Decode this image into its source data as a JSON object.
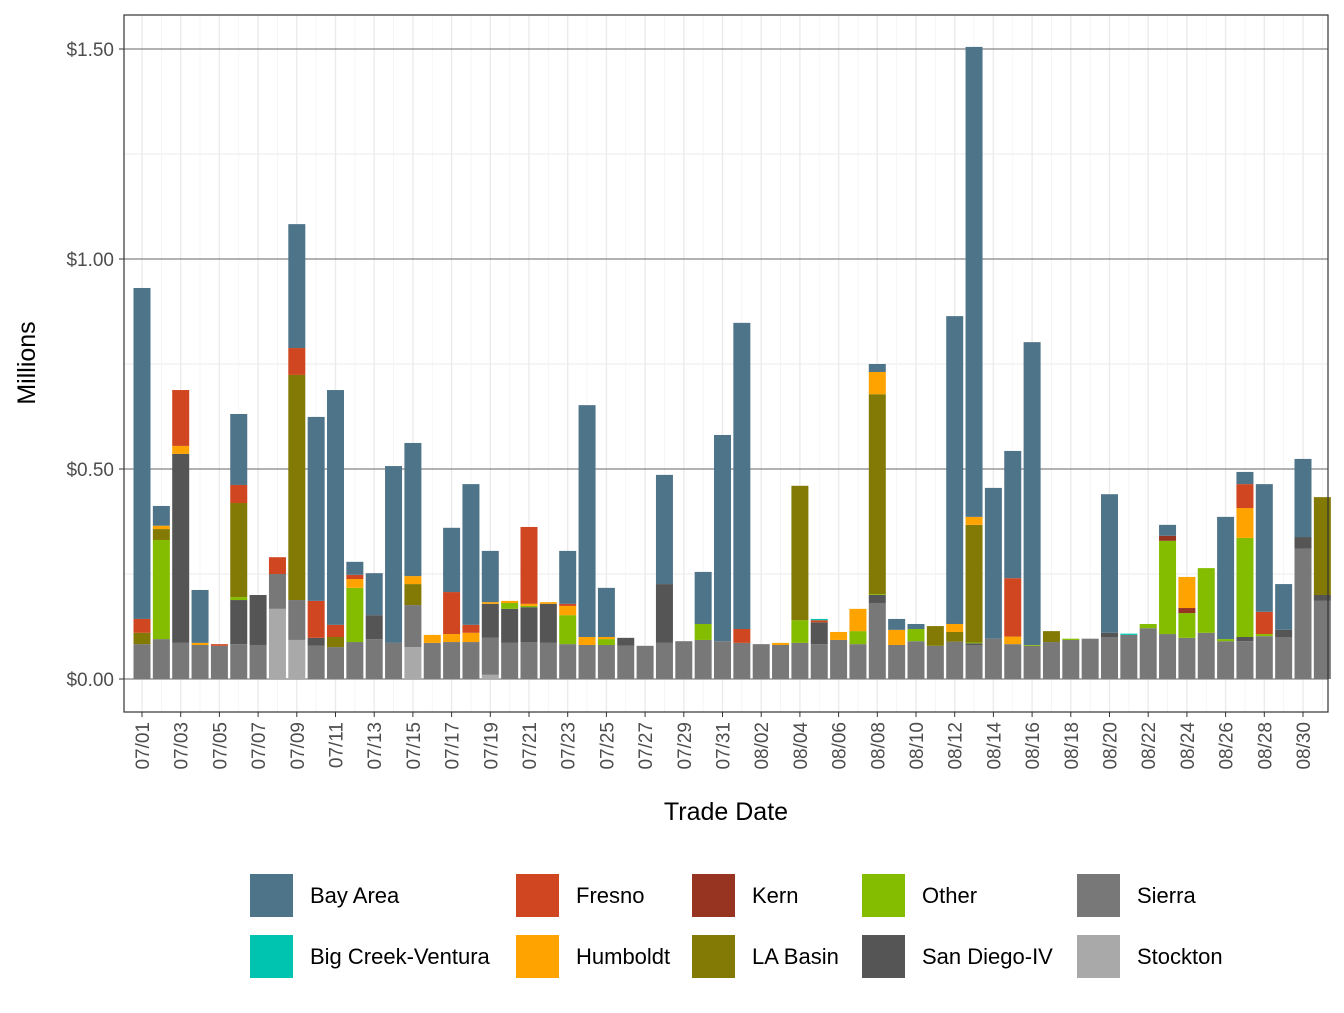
{
  "chart_data": {
    "type": "bar",
    "stacked": true,
    "title": "",
    "xlabel": "Trade Date",
    "ylabel": "Millions",
    "ylim": [
      -0.08,
      1.58
    ],
    "yticks": [
      0,
      0.5,
      1.0,
      1.5
    ],
    "ytick_labels": [
      "$0.00",
      "$0.50",
      "$1.00",
      "$1.50"
    ],
    "grid": true,
    "legend_position": "bottom",
    "categories": [
      "07/01",
      "07/02",
      "07/03",
      "07/04",
      "07/05",
      "07/06",
      "07/07",
      "07/08",
      "07/09",
      "07/10",
      "07/11",
      "07/12",
      "07/13",
      "07/14",
      "07/15",
      "07/16",
      "07/17",
      "07/18",
      "07/19",
      "07/20",
      "07/21",
      "07/22",
      "07/23",
      "07/24",
      "07/25",
      "07/26",
      "07/27",
      "07/28",
      "07/29",
      "07/30",
      "07/31",
      "08/01",
      "08/02",
      "08/03",
      "08/04",
      "08/05",
      "08/06",
      "08/07",
      "08/08",
      "08/09",
      "08/10",
      "08/11",
      "08/12",
      "08/13",
      "08/14",
      "08/15",
      "08/16",
      "08/17",
      "08/18",
      "08/19",
      "08/20",
      "08/21",
      "08/22",
      "08/23",
      "08/24",
      "08/25",
      "08/26",
      "08/27",
      "08/28",
      "08/29",
      "08/30",
      "08/31"
    ],
    "xtick_labels": [
      "07/01",
      "07/03",
      "07/05",
      "07/07",
      "07/09",
      "07/11",
      "07/13",
      "07/15",
      "07/17",
      "07/19",
      "07/21",
      "07/23",
      "07/25",
      "07/27",
      "07/29",
      "07/31",
      "08/02",
      "08/04",
      "08/06",
      "08/08",
      "08/10",
      "08/12",
      "08/14",
      "08/16",
      "08/18",
      "08/20",
      "08/22",
      "08/24",
      "08/26",
      "08/28",
      "08/30"
    ],
    "stack_order_bottom_to_top": [
      "Stockton",
      "Sierra",
      "San Diego-IV",
      "Other",
      "LA Basin",
      "Kern",
      "Humboldt",
      "Fresno",
      "Big Creek-Ventura",
      "Bay Area"
    ],
    "legend_order": [
      "Bay Area",
      "Fresno",
      "Kern",
      "Other",
      "Sierra",
      "Big Creek-Ventura",
      "Humboldt",
      "LA Basin",
      "San Diego-IV",
      "Stockton"
    ],
    "series": [
      {
        "name": "Bay Area",
        "color": "#4e7489",
        "values": [
          0.788,
          0.047,
          0,
          0.126,
          0,
          0.169,
          0,
          0,
          0.295,
          0.438,
          0.559,
          0.031,
          0.1,
          0.421,
          0.317,
          0,
          0.153,
          0.335,
          0.122,
          0,
          0,
          0,
          0.126,
          0.552,
          0.117,
          0,
          0,
          0.26,
          0,
          0.124,
          0.491,
          0.729,
          0,
          0,
          0,
          0,
          0,
          0,
          0.019,
          0.026,
          0.012,
          0,
          0.733,
          1.119,
          0.359,
          0.303,
          0.721,
          0,
          0,
          0,
          0.33,
          0,
          0,
          0.026,
          0,
          0,
          0.291,
          0.029,
          0.304,
          0.109,
          0.186,
          0
        ]
      },
      {
        "name": "Big Creek-Ventura",
        "color": "#00c4b0",
        "values": [
          0,
          0,
          0,
          0,
          0,
          0,
          0,
          0,
          0,
          0,
          0,
          0,
          0,
          0,
          0,
          0,
          0,
          0,
          0,
          0,
          0,
          0,
          0,
          0,
          0,
          0,
          0,
          0,
          0,
          0,
          0,
          0,
          0,
          0,
          0,
          0.003,
          0,
          0,
          0,
          0,
          0,
          0,
          0,
          0,
          0,
          0,
          0,
          0,
          0,
          0,
          0,
          0.003,
          0,
          0,
          0,
          0,
          0,
          0,
          0,
          0,
          0,
          0
        ]
      },
      {
        "name": "Fresno",
        "color": "#d04620",
        "values": [
          0.033,
          0,
          0.133,
          0,
          0.004,
          0.043,
          0,
          0.04,
          0.064,
          0.088,
          0.029,
          0.01,
          0,
          0,
          0,
          0,
          0.1,
          0.019,
          0,
          0,
          0.183,
          0,
          0.005,
          0,
          0,
          0,
          0,
          0,
          0,
          0,
          0,
          0.033,
          0,
          0,
          0,
          0.005,
          0,
          0,
          0,
          0,
          0,
          0,
          0,
          0,
          0,
          0.139,
          0,
          0,
          0,
          0,
          0,
          0,
          0,
          0,
          0,
          0,
          0,
          0.057,
          0.053,
          0,
          0,
          0
        ]
      },
      {
        "name": "Humboldt",
        "color": "#ffa300",
        "values": [
          0,
          0.008,
          0.019,
          0.005,
          0,
          0,
          0,
          0,
          0,
          0,
          0,
          0.021,
          0,
          0,
          0.019,
          0.019,
          0.019,
          0.022,
          0.004,
          0.005,
          0.005,
          0.004,
          0.022,
          0.019,
          0.005,
          0,
          0,
          0,
          0,
          0,
          0,
          0,
          0,
          0.005,
          0,
          0,
          0.019,
          0.053,
          0.053,
          0.036,
          0,
          0,
          0.019,
          0.019,
          0,
          0.018,
          0,
          0,
          0,
          0,
          0,
          0,
          0,
          0,
          0.074,
          0,
          0,
          0.071,
          0,
          0,
          0,
          0
        ]
      },
      {
        "name": "Kern",
        "color": "#963421",
        "values": [
          0,
          0,
          0,
          0,
          0,
          0,
          0,
          0,
          0,
          0,
          0,
          0,
          0,
          0,
          0,
          0,
          0,
          0,
          0,
          0,
          0,
          0,
          0,
          0,
          0,
          0,
          0,
          0,
          0,
          0,
          0,
          0,
          0,
          0,
          0,
          0,
          0,
          0,
          0,
          0,
          0,
          0,
          0,
          0,
          0,
          0,
          0,
          0,
          0,
          0,
          0,
          0,
          0,
          0.012,
          0.012,
          0,
          0,
          0,
          0,
          0,
          0,
          0
        ]
      },
      {
        "name": "LA Basin",
        "color": "#837a05",
        "values": [
          0.027,
          0.026,
          0,
          0,
          0,
          0.224,
          0,
          0,
          0.536,
          0,
          0.024,
          0,
          0,
          0,
          0.05,
          0,
          0,
          0,
          0,
          0,
          0,
          0,
          0,
          0,
          0,
          0,
          0,
          0,
          0,
          0,
          0,
          0,
          0,
          0,
          0.32,
          0,
          0,
          0,
          0.476,
          0,
          0,
          0.047,
          0.023,
          0.28,
          0,
          0,
          0,
          0.026,
          0,
          0,
          0,
          0,
          0,
          0,
          0,
          0,
          0,
          0,
          0,
          0,
          0,
          0.233
        ]
      },
      {
        "name": "Other",
        "color": "#84bc00",
        "values": [
          0,
          0.236,
          0,
          0,
          0,
          0.007,
          0,
          0,
          0,
          0,
          0,
          0.129,
          0,
          0,
          0,
          0,
          0,
          0,
          0,
          0.014,
          0.003,
          0,
          0.069,
          0,
          0.014,
          0,
          0,
          0,
          0,
          0.038,
          0,
          0,
          0,
          0,
          0.054,
          0,
          0,
          0.031,
          0.002,
          0,
          0.029,
          0,
          0,
          0.002,
          0,
          0,
          0.002,
          0,
          0.003,
          0,
          0,
          0,
          0.01,
          0.222,
          0.059,
          0.154,
          0.005,
          0.236,
          0.005,
          0,
          0,
          0
        ]
      },
      {
        "name": "San Diego-IV",
        "color": "#555555",
        "values": [
          0,
          0,
          0.45,
          0,
          0,
          0.105,
          0.119,
          0,
          0,
          0.019,
          0,
          0,
          0.057,
          0,
          0,
          0,
          0,
          0,
          0.081,
          0.081,
          0.083,
          0.093,
          0,
          0,
          0,
          0.019,
          0,
          0.14,
          0,
          0,
          0,
          0,
          0,
          0,
          0,
          0.052,
          0,
          0,
          0.019,
          0,
          0,
          0,
          0,
          0.004,
          0,
          0,
          0,
          0,
          0,
          0,
          0.01,
          0,
          0,
          0,
          0,
          0,
          0,
          0.01,
          0,
          0.017,
          0.028,
          0.014
        ]
      },
      {
        "name": "Sierra",
        "color": "#787878",
        "values": [
          0.083,
          0.095,
          0.086,
          0.081,
          0.079,
          0.083,
          0.081,
          0.083,
          0.095,
          0.079,
          0.076,
          0.088,
          0.095,
          0.086,
          0.1,
          0.086,
          0.088,
          0.088,
          0.088,
          0.086,
          0.088,
          0.086,
          0.083,
          0.081,
          0.081,
          0.079,
          0.079,
          0.086,
          0.09,
          0.093,
          0.09,
          0.086,
          0.083,
          0.081,
          0.086,
          0.083,
          0.093,
          0.083,
          0.181,
          0.081,
          0.09,
          0.079,
          0.089,
          0.081,
          0.096,
          0.083,
          0.079,
          0.088,
          0.093,
          0.096,
          0.1,
          0.105,
          0.121,
          0.107,
          0.098,
          0.11,
          0.09,
          0.09,
          0.102,
          0.1,
          0.31,
          0.186
        ]
      },
      {
        "name": "Stockton",
        "color": "#a9a9a9",
        "values": [
          0,
          0,
          0,
          0,
          0,
          0,
          0,
          0.167,
          0.093,
          0,
          0,
          0,
          0,
          0,
          0.076,
          0,
          0,
          0,
          0.01,
          0,
          0,
          0,
          0,
          0,
          0,
          0,
          0,
          0,
          0,
          0,
          0,
          0,
          0,
          0,
          0,
          0,
          0,
          0,
          0,
          0,
          0,
          0,
          0,
          0,
          0,
          0,
          0,
          0,
          0,
          0,
          0,
          0,
          0,
          0,
          0,
          0,
          0,
          0,
          0,
          0,
          0,
          0
        ]
      }
    ]
  }
}
